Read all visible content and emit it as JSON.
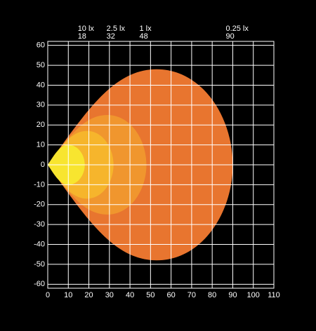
{
  "chart_data": {
    "type": "isolux",
    "xlim": [
      0,
      110
    ],
    "ylim": [
      -62,
      62
    ],
    "xticks": [
      0,
      10,
      20,
      30,
      40,
      50,
      60,
      70,
      80,
      90,
      100,
      110
    ],
    "yticks": [
      -60,
      -50,
      -40,
      -30,
      -20,
      -10,
      0,
      10,
      20,
      30,
      40,
      50,
      60
    ],
    "grid": true,
    "series": [
      {
        "name": "0.25 lx",
        "color": "#e8752f",
        "reach": 90,
        "spread": 48,
        "spread_at": 53
      },
      {
        "name": "1 lx",
        "color": "#f0962e",
        "reach": 48,
        "spread": 25,
        "spread_at": 29
      },
      {
        "name": "2.5 lx",
        "color": "#f6b52c",
        "reach": 32,
        "spread": 17,
        "spread_at": 19
      },
      {
        "name": "10 lx",
        "color": "#f8e52f",
        "reach": 18,
        "spread": 10,
        "spread_at": 10
      }
    ]
  }
}
